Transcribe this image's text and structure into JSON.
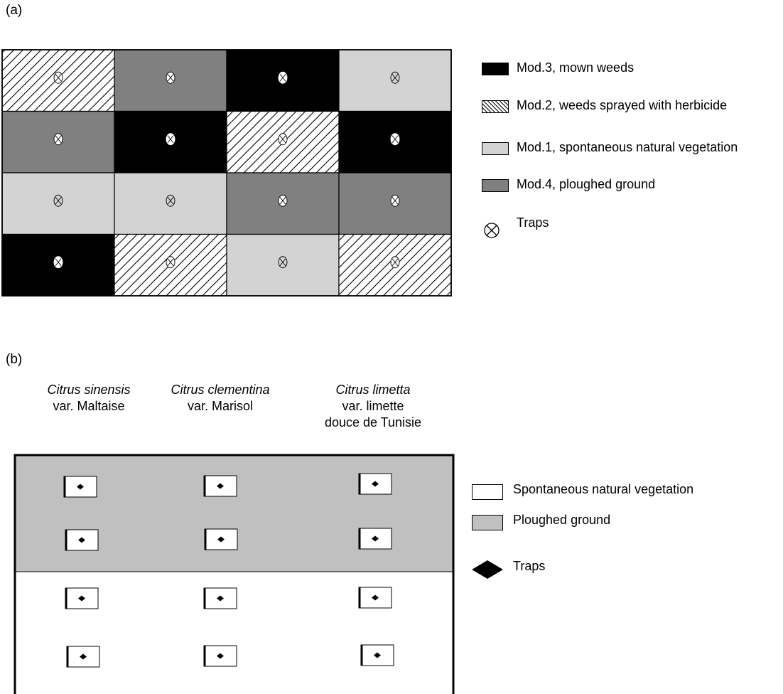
{
  "panel_a": {
    "label": "(a)",
    "grid": [
      [
        "hatched",
        "dark",
        "black",
        "light"
      ],
      [
        "dark",
        "black",
        "hatched",
        "black"
      ],
      [
        "light",
        "light",
        "dark",
        "dark"
      ],
      [
        "black",
        "hatched",
        "light",
        "hatched"
      ]
    ],
    "legend": [
      {
        "fill": "black",
        "label": "Mod.3, mown weeds"
      },
      {
        "fill": "hatched",
        "label": "Mod.2, weeds sprayed with herbicide"
      },
      {
        "fill": "light",
        "label": "Mod.1, spontaneous natural vegetation"
      },
      {
        "fill": "dark",
        "label": "Mod.4, ploughed ground"
      },
      {
        "fill": "trap",
        "label": "Traps"
      }
    ],
    "colors": {
      "black": "#000000",
      "dark": "#808080",
      "light": "#d3d3d3",
      "hatched": "#ffffff"
    }
  },
  "panel_b": {
    "label": "(b)",
    "columns": [
      {
        "species": "Citrus sinensis",
        "variety": [
          "var. Maltaise"
        ]
      },
      {
        "species": "Citrus clementina",
        "variety": [
          "var. Marisol"
        ]
      },
      {
        "species": "Citrus limetta",
        "variety": [
          "var. limette",
          "douce de Tunisie"
        ]
      }
    ],
    "legend": [
      {
        "fill": "white",
        "label": "Spontaneous natural vegetation"
      },
      {
        "fill": "gray",
        "label": "Ploughed ground"
      },
      {
        "fill": "trap",
        "label": "Traps"
      }
    ],
    "colors": {
      "gray": "#c0c0c0",
      "white": "#ffffff"
    }
  }
}
